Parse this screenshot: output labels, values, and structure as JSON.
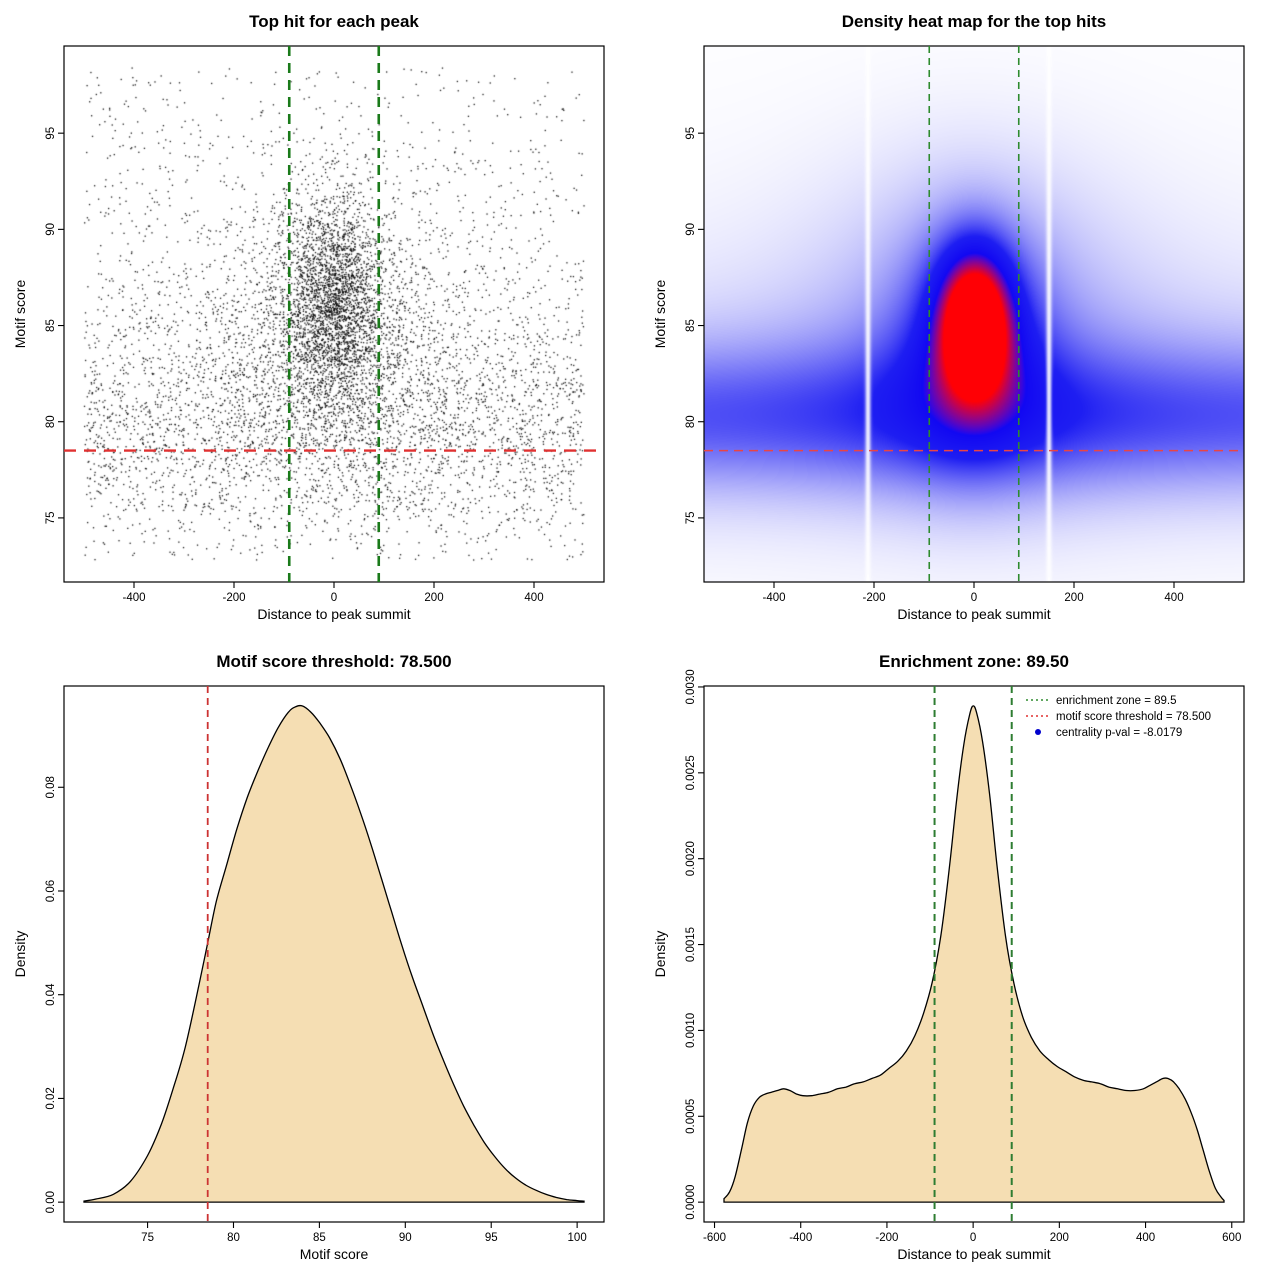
{
  "figure": {
    "background": "#ffffff"
  },
  "chart_data": [
    {
      "id": "top-hit-scatter",
      "type": "scatter",
      "title": "Top hit for each peak",
      "xlabel": "Distance to peak summit",
      "ylabel": "Motif score",
      "xlim": [
        -500,
        500
      ],
      "ylim": [
        72.7,
        98.5
      ],
      "xticks": {
        "values": [
          -400,
          -200,
          0,
          200,
          400
        ],
        "labels": [
          "-400",
          "-200",
          "0",
          "200",
          "400"
        ]
      },
      "yticks": {
        "values": [
          75,
          80,
          85,
          90,
          95
        ],
        "labels": [
          "75",
          "80",
          "85",
          "90",
          "95"
        ]
      },
      "point_color": "#000000",
      "point_cloud": {
        "note": "dense unlabeled point cloud approximated by mixture distribution",
        "seed": 42,
        "clip": {
          "x": [
            -500,
            500
          ],
          "y": [
            72.8,
            98.4
          ]
        },
        "components": [
          {
            "n": 2400,
            "x": {
              "dist": "uniform",
              "min": -500,
              "max": 500
            },
            "y": {
              "dist": "normal",
              "mean": 81.5,
              "sd": 5.8
            }
          },
          {
            "n": 350,
            "x": {
              "dist": "uniform",
              "min": -500,
              "max": 500
            },
            "y": {
              "dist": "uniform",
              "min": 90,
              "max": 98.4
            }
          },
          {
            "n": 1900,
            "x": {
              "dist": "normal",
              "mean": 0,
              "sd": 48
            },
            "y": {
              "dist": "normal",
              "mean": 86.2,
              "sd": 2.7
            }
          },
          {
            "n": 1400,
            "x": {
              "dist": "normal",
              "mean": -5,
              "sd": 95
            },
            "y": {
              "dist": "normal",
              "mean": 85.0,
              "sd": 3.6
            }
          },
          {
            "n": 1100,
            "x": {
              "dist": "normal",
              "mean": 0,
              "sd": 210
            },
            "y": {
              "dist": "normal",
              "mean": 83.5,
              "sd": 4.2
            }
          },
          {
            "n": 1300,
            "x": {
              "dist": "uniform",
              "min": -500,
              "max": 500
            },
            "y": {
              "dist": "normal",
              "mean": 79.3,
              "sd": 2.4
            }
          }
        ]
      },
      "vlines": {
        "x": [
          -89.5,
          89.5
        ],
        "color": "#1a7a1a",
        "width": 2.6,
        "dash": "10,7",
        "name": "enrichment-zone-line"
      },
      "hline": {
        "y": 78.5,
        "color": "#e03131",
        "width": 2.4,
        "dash": "12,8",
        "name": "motif-score-threshold-line"
      }
    },
    {
      "id": "density-heatmap",
      "type": "heatmap",
      "title": "Density heat map for the top hits",
      "xlabel": "Distance to peak summit",
      "ylabel": "Motif score",
      "xlim": [
        -500,
        500
      ],
      "ylim": [
        72.7,
        98.5
      ],
      "xticks": {
        "values": [
          -400,
          -200,
          0,
          200,
          400
        ],
        "labels": [
          "-400",
          "-200",
          "0",
          "200",
          "400"
        ]
      },
      "yticks": {
        "values": [
          75,
          80,
          85,
          90,
          95
        ],
        "labels": [
          "75",
          "80",
          "85",
          "90",
          "95"
        ]
      },
      "colormap": {
        "zero": "#ffffff",
        "low": "#c8d2f5",
        "mid": "#1e1ef0",
        "high": "#ff1400"
      },
      "density_model": {
        "note": "2D kernel density: hot core near (0, 85), horizontal band near score 80",
        "components": [
          {
            "amp": 0.72,
            "x0": 2,
            "sx": 52,
            "y0": 85.4,
            "sy": 2.6
          },
          {
            "amp": 0.34,
            "x0": 0,
            "sx": 100,
            "y0": 84.3,
            "sy": 4.2
          },
          {
            "amp": 0.18,
            "x0": 0,
            "sx": 230,
            "y0": 85.6,
            "sy": 6.2
          },
          {
            "amp": 0.3,
            "x0": 0,
            "sx": 9000,
            "y0": 80.2,
            "sy": 2.7
          },
          {
            "amp": 0.1,
            "x0": 0,
            "sx": 9000,
            "y0": 81.0,
            "sy": 5.0
          },
          {
            "amp": 0.05,
            "x0": 0,
            "sx": 9000,
            "y0": 84.0,
            "sy": 9.0
          }
        ],
        "white_gaps_x": [
          -212,
          150
        ]
      },
      "vlines": {
        "x": [
          -89.5,
          89.5
        ],
        "color": "#2e8b2e",
        "width": 1.6,
        "dash": "7,5",
        "name": "enrichment-zone-line"
      },
      "hline": {
        "y": 78.5,
        "color": "#e84545",
        "width": 1.5,
        "dash": "9,6",
        "name": "motif-score-threshold-line"
      }
    },
    {
      "id": "motif-score-density",
      "type": "area",
      "title": "Motif score threshold: 78.500",
      "xlabel": "Motif score",
      "ylabel": "Density",
      "xlim": [
        71.3,
        100.4
      ],
      "ylim": [
        0,
        0.0957
      ],
      "xticks": {
        "values": [
          75,
          80,
          85,
          90,
          95,
          100
        ],
        "labels": [
          "75",
          "80",
          "85",
          "90",
          "95",
          "100"
        ]
      },
      "yticks": {
        "values": [
          0,
          0.02,
          0.04,
          0.06,
          0.08
        ],
        "labels": [
          "0.00",
          "0.02",
          "0.04",
          "0.06",
          "0.08"
        ]
      },
      "fill": "#f5deb3",
      "line_color": "#000000",
      "vline": {
        "x": 78.5,
        "color": "#cc3333",
        "width": 1.8,
        "dash": "7,5",
        "name": "motif-score-threshold-line"
      },
      "curve": [
        [
          71.3,
          0.0002
        ],
        [
          72,
          0.0006
        ],
        [
          73,
          0.0015
        ],
        [
          74,
          0.004
        ],
        [
          75,
          0.009
        ],
        [
          75.8,
          0.015
        ],
        [
          76.5,
          0.022
        ],
        [
          77.2,
          0.03
        ],
        [
          78,
          0.042
        ],
        [
          78.5,
          0.05
        ],
        [
          79,
          0.058
        ],
        [
          79.6,
          0.065
        ],
        [
          80.2,
          0.072
        ],
        [
          80.8,
          0.078
        ],
        [
          81.4,
          0.083
        ],
        [
          82,
          0.0875
        ],
        [
          82.6,
          0.0915
        ],
        [
          83.2,
          0.0945
        ],
        [
          83.6,
          0.0955
        ],
        [
          84,
          0.0957
        ],
        [
          84.5,
          0.0945
        ],
        [
          85,
          0.0925
        ],
        [
          85.6,
          0.0895
        ],
        [
          86.2,
          0.0855
        ],
        [
          86.8,
          0.0805
        ],
        [
          87.4,
          0.075
        ],
        [
          88,
          0.069
        ],
        [
          88.6,
          0.0625
        ],
        [
          89.2,
          0.056
        ],
        [
          89.8,
          0.0495
        ],
        [
          90.4,
          0.0435
        ],
        [
          91,
          0.038
        ],
        [
          91.6,
          0.0325
        ],
        [
          92.2,
          0.0275
        ],
        [
          92.8,
          0.0228
        ],
        [
          93.4,
          0.0185
        ],
        [
          94,
          0.0148
        ],
        [
          94.6,
          0.0115
        ],
        [
          95.2,
          0.0088
        ],
        [
          95.8,
          0.0065
        ],
        [
          96.4,
          0.0047
        ],
        [
          97,
          0.0033
        ],
        [
          97.6,
          0.0023
        ],
        [
          98.2,
          0.0015
        ],
        [
          98.8,
          0.0009
        ],
        [
          99.4,
          0.0005
        ],
        [
          100,
          0.0003
        ],
        [
          100.4,
          0.0002
        ]
      ]
    },
    {
      "id": "distance-density",
      "type": "area",
      "title": "Enrichment zone: 89.50",
      "xlabel": "Distance to peak summit",
      "ylabel": "Density",
      "xlim": [
        -578,
        582
      ],
      "ylim": [
        0,
        0.00289
      ],
      "xticks": {
        "values": [
          -600,
          -400,
          -200,
          0,
          200,
          400,
          600
        ],
        "labels": [
          "-600",
          "-400",
          "-200",
          "0",
          "200",
          "400",
          "600"
        ]
      },
      "yticks": {
        "values": [
          0,
          0.0005,
          0.001,
          0.0015,
          0.002,
          0.0025,
          0.003
        ],
        "labels": [
          "0.0000",
          "0.0005",
          "0.0010",
          "0.0015",
          "0.0020",
          "0.0025",
          "0.0030"
        ]
      },
      "fill": "#f5deb3",
      "line_color": "#000000",
      "vlines": {
        "x": [
          -89.5,
          89.5
        ],
        "color": "#2e7d32",
        "width": 2,
        "dash": "7,5",
        "name": "enrichment-zone-line"
      },
      "legend": {
        "items": [
          {
            "type": "line",
            "color": "#2e8b2e",
            "label": "enrichment zone = 89.5"
          },
          {
            "type": "line",
            "color": "#e03131",
            "label": "motif score threshold = 78.500"
          },
          {
            "type": "point",
            "color": "#0000cd",
            "label": "centrality p-val = -8.0179"
          }
        ]
      },
      "curve": [
        [
          -578,
          2e-05
        ],
        [
          -565,
          6e-05
        ],
        [
          -552,
          0.00015
        ],
        [
          -538,
          0.0003
        ],
        [
          -524,
          0.00046
        ],
        [
          -510,
          0.00056
        ],
        [
          -496,
          0.00061
        ],
        [
          -482,
          0.00063
        ],
        [
          -468,
          0.00064
        ],
        [
          -454,
          0.00065
        ],
        [
          -440,
          0.00066
        ],
        [
          -425,
          0.00065
        ],
        [
          -410,
          0.00063
        ],
        [
          -395,
          0.00062
        ],
        [
          -375,
          0.00062
        ],
        [
          -355,
          0.00063
        ],
        [
          -335,
          0.00064
        ],
        [
          -315,
          0.00066
        ],
        [
          -295,
          0.00067
        ],
        [
          -275,
          0.00069
        ],
        [
          -255,
          0.0007
        ],
        [
          -235,
          0.00072
        ],
        [
          -215,
          0.00074
        ],
        [
          -195,
          0.00078
        ],
        [
          -175,
          0.00082
        ],
        [
          -155,
          0.00088
        ],
        [
          -135,
          0.00097
        ],
        [
          -115,
          0.0011
        ],
        [
          -95,
          0.00128
        ],
        [
          -75,
          0.00155
        ],
        [
          -55,
          0.00195
        ],
        [
          -38,
          0.00235
        ],
        [
          -22,
          0.00266
        ],
        [
          -8,
          0.00284
        ],
        [
          0,
          0.00289
        ],
        [
          8,
          0.00285
        ],
        [
          22,
          0.00268
        ],
        [
          38,
          0.00238
        ],
        [
          55,
          0.00197
        ],
        [
          75,
          0.00155
        ],
        [
          95,
          0.00127
        ],
        [
          115,
          0.00108
        ],
        [
          135,
          0.00096
        ],
        [
          155,
          0.00088
        ],
        [
          175,
          0.00083
        ],
        [
          195,
          0.00079
        ],
        [
          215,
          0.00076
        ],
        [
          235,
          0.00073
        ],
        [
          255,
          0.00071
        ],
        [
          275,
          0.0007
        ],
        [
          295,
          0.00069
        ],
        [
          315,
          0.00067
        ],
        [
          335,
          0.00066
        ],
        [
          355,
          0.00065
        ],
        [
          375,
          0.00065
        ],
        [
          395,
          0.00066
        ],
        [
          410,
          0.00068
        ],
        [
          425,
          0.0007
        ],
        [
          440,
          0.00072
        ],
        [
          452,
          0.00072
        ],
        [
          465,
          0.0007
        ],
        [
          478,
          0.00066
        ],
        [
          492,
          0.0006
        ],
        [
          506,
          0.00052
        ],
        [
          520,
          0.00042
        ],
        [
          534,
          0.0003
        ],
        [
          548,
          0.00018
        ],
        [
          562,
          8e-05
        ],
        [
          575,
          3e-05
        ],
        [
          582,
          1e-05
        ]
      ]
    }
  ]
}
